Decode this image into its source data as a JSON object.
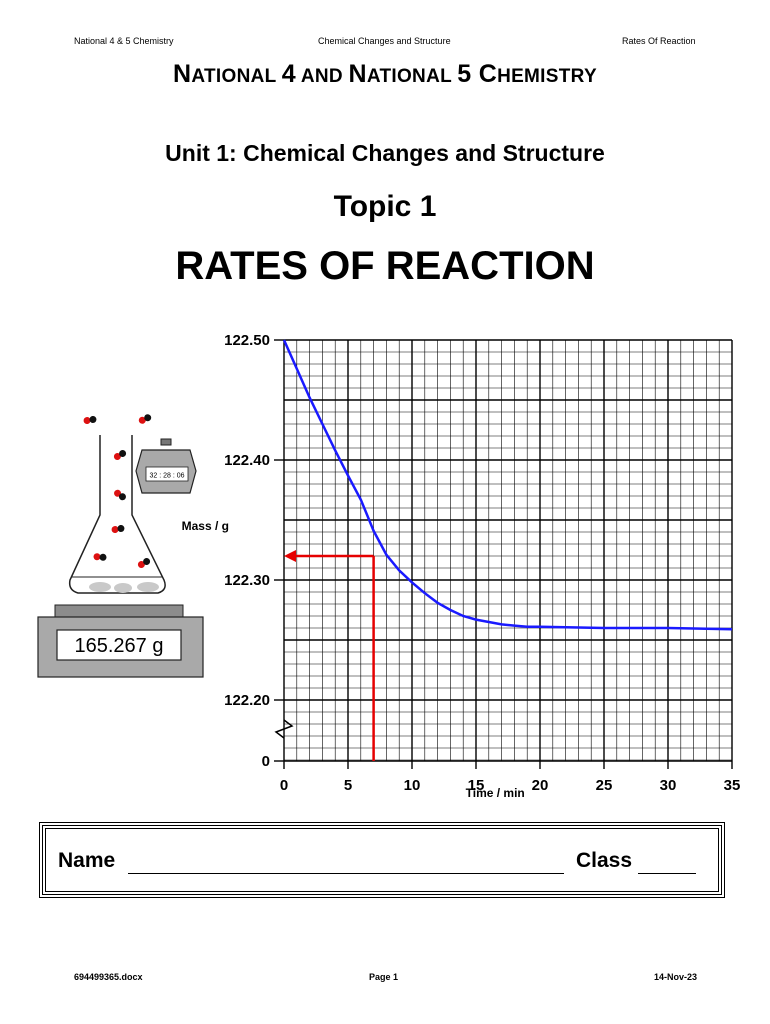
{
  "header": {
    "left": "National 4 & 5 Chemistry",
    "center": "Chemical Changes and Structure",
    "right": "Rates Of Reaction"
  },
  "title": {
    "main_parts": [
      {
        "text": "N",
        "size": "big"
      },
      {
        "text": "ATIONAL ",
        "size": "small"
      },
      {
        "text": "4",
        "size": "big"
      },
      {
        "text": " AND ",
        "size": "small"
      },
      {
        "text": "N",
        "size": "big"
      },
      {
        "text": "ATIONAL ",
        "size": "small"
      },
      {
        "text": "5",
        "size": "big"
      },
      {
        "text": " C",
        "size": "big"
      },
      {
        "text": "HEMISTRY",
        "size": "small"
      }
    ],
    "unit": "Unit 1: Chemical Changes and Structure",
    "topic": "Topic 1",
    "heading": "RATES OF REACTION"
  },
  "illustration": {
    "balance_reading": "165.267 g",
    "stopwatch_time": "32 : 28 : 06"
  },
  "chart_data": {
    "type": "line",
    "xlabel": "Time / min",
    "ylabel": "Mass / g",
    "xlim": [
      0,
      35
    ],
    "ylim": [
      122.2,
      122.5
    ],
    "y_axis_break": true,
    "grid": true,
    "x_ticks": [
      "0",
      "5",
      "10",
      "15",
      "20",
      "25",
      "30",
      "35"
    ],
    "y_ticks": [
      "122.50",
      "122.40",
      "122.30",
      "122.20",
      "0"
    ],
    "series": [
      {
        "color": "#1a1aff",
        "x": [
          0,
          1,
          2,
          3,
          4,
          5,
          6,
          7,
          8,
          9,
          10,
          11,
          12,
          13,
          14,
          15,
          16,
          17,
          18,
          19,
          20,
          25,
          30,
          35
        ],
        "y": [
          122.5,
          122.476,
          122.452,
          122.43,
          122.408,
          122.387,
          122.367,
          122.341,
          122.321,
          122.308,
          122.298,
          122.289,
          122.281,
          122.275,
          122.27,
          122.267,
          122.265,
          122.263,
          122.262,
          122.261,
          122.261,
          122.26,
          122.26,
          122.259
        ]
      }
    ],
    "annotation": {
      "color": "#e60000",
      "x": 7,
      "y": 122.32
    }
  },
  "form": {
    "name_label": "Name",
    "class_label": "Class"
  },
  "footer": {
    "left": "694499365.docx",
    "center": "Page 1",
    "right": "14-Nov-23"
  }
}
